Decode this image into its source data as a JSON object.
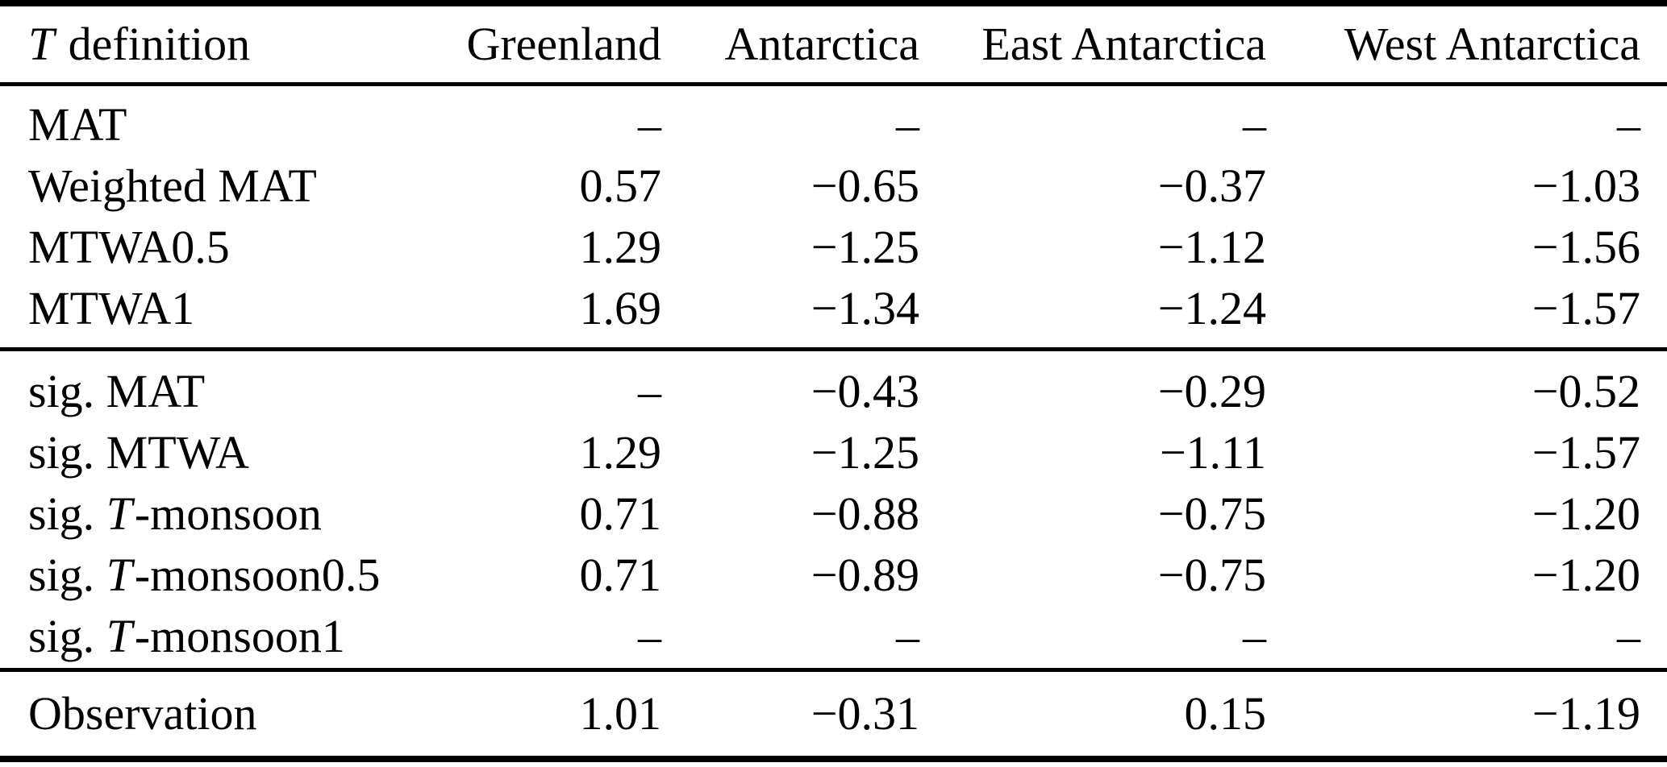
{
  "page": {
    "background_color": "#ffffff",
    "text_color": "#000000"
  },
  "table": {
    "header": [
      {
        "pre": "",
        "it": "T",
        "post": " definition"
      },
      {
        "pre": "Greenland",
        "it": "",
        "post": ""
      },
      {
        "pre": "Antarctica",
        "it": "",
        "post": ""
      },
      {
        "pre": "East Antarctica",
        "it": "",
        "post": ""
      },
      {
        "pre": "West Antarctica",
        "it": "",
        "post": ""
      }
    ],
    "groups": [
      {
        "rows": [
          {
            "pre": "MAT",
            "it": "",
            "post": "",
            "values": [
              "–",
              "–",
              "–",
              "–"
            ]
          },
          {
            "pre": "Weighted MAT",
            "it": "",
            "post": "",
            "values": [
              "0.57",
              "−0.65",
              "−0.37",
              "−1.03"
            ]
          },
          {
            "pre": "MTWA0.5",
            "it": "",
            "post": "",
            "values": [
              "1.29",
              "−1.25",
              "−1.12",
              "−1.56"
            ]
          },
          {
            "pre": "MTWA1",
            "it": "",
            "post": "",
            "values": [
              "1.69",
              "−1.34",
              "−1.24",
              "−1.57"
            ]
          }
        ]
      },
      {
        "rows": [
          {
            "pre": "sig. MAT",
            "it": "",
            "post": "",
            "values": [
              "–",
              "−0.43",
              "−0.29",
              "−0.52"
            ]
          },
          {
            "pre": "sig. MTWA",
            "it": "",
            "post": "",
            "values": [
              "1.29",
              "−1.25",
              "−1.11",
              "−1.57"
            ]
          },
          {
            "pre": "sig. ",
            "it": "T",
            "post": "-monsoon",
            "values": [
              "0.71",
              "−0.88",
              "−0.75",
              "−1.20"
            ]
          },
          {
            "pre": "sig. ",
            "it": "T",
            "post": "-monsoon0.5",
            "values": [
              "0.71",
              "−0.89",
              "−0.75",
              "−1.20"
            ]
          },
          {
            "pre": "sig. ",
            "it": "T",
            "post": "-monsoon1",
            "values": [
              "–",
              "–",
              "–",
              "–"
            ]
          }
        ]
      },
      {
        "rows": [
          {
            "pre": "Observation",
            "it": "",
            "post": "",
            "values": [
              "1.01",
              "−0.31",
              "0.15",
              "−1.19"
            ]
          }
        ]
      }
    ]
  }
}
